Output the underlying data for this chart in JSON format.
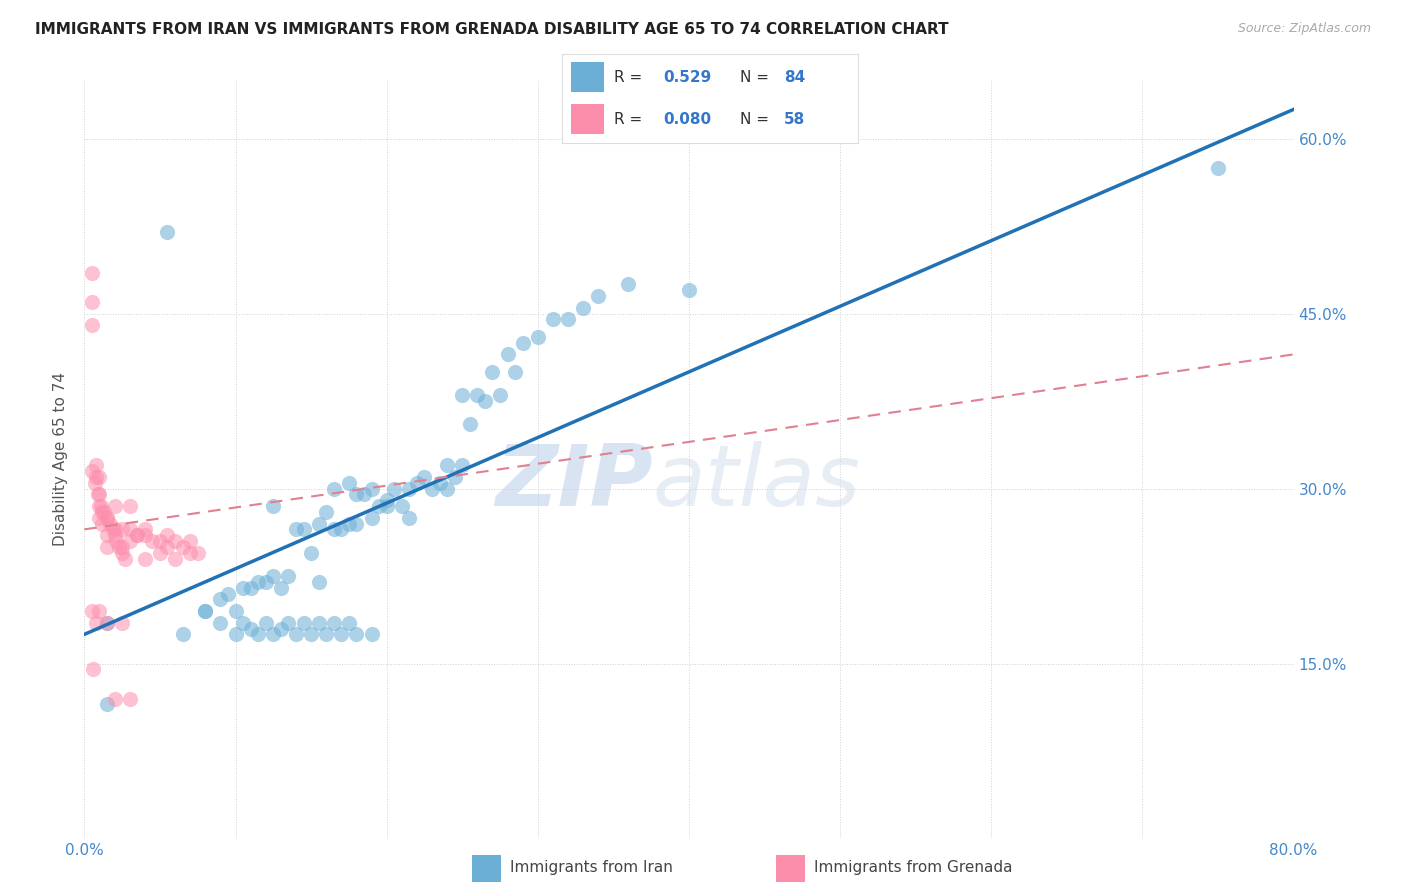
{
  "title": "IMMIGRANTS FROM IRAN VS IMMIGRANTS FROM GRENADA DISABILITY AGE 65 TO 74 CORRELATION CHART",
  "source": "Source: ZipAtlas.com",
  "ylabel": "Disability Age 65 to 74",
  "xlim": [
    0.0,
    0.8
  ],
  "ylim": [
    0.0,
    0.65
  ],
  "xticks": [
    0.0,
    0.1,
    0.2,
    0.3,
    0.4,
    0.5,
    0.6,
    0.7,
    0.8
  ],
  "xticklabels_show": [
    "0.0%",
    "80.0%"
  ],
  "yticks": [
    0.0,
    0.15,
    0.3,
    0.45,
    0.6
  ],
  "yticklabels": [
    "",
    "15.0%",
    "30.0%",
    "45.0%",
    "60.0%"
  ],
  "iran_color": "#6baed6",
  "grenada_color": "#fc8eac",
  "iran_line_color": "#2171b5",
  "grenada_line_color": "#e08090",
  "watermark_zip": "ZIP",
  "watermark_atlas": "atlas",
  "iran_R": 0.529,
  "iran_N": 84,
  "grenada_R": 0.08,
  "grenada_N": 58,
  "iran_line_x0": 0.0,
  "iran_line_y0": 0.175,
  "iran_line_x1": 0.8,
  "iran_line_y1": 0.625,
  "grenada_line_x0": 0.0,
  "grenada_line_y0": 0.265,
  "grenada_line_x1": 0.8,
  "grenada_line_y1": 0.415,
  "iran_scatter_x": [
    0.015,
    0.055,
    0.065,
    0.08,
    0.09,
    0.095,
    0.1,
    0.105,
    0.11,
    0.115,
    0.12,
    0.125,
    0.125,
    0.13,
    0.135,
    0.14,
    0.145,
    0.15,
    0.155,
    0.155,
    0.16,
    0.165,
    0.165,
    0.17,
    0.175,
    0.175,
    0.18,
    0.18,
    0.185,
    0.19,
    0.19,
    0.195,
    0.2,
    0.2,
    0.205,
    0.21,
    0.215,
    0.215,
    0.22,
    0.225,
    0.23,
    0.235,
    0.24,
    0.24,
    0.245,
    0.25,
    0.255,
    0.26,
    0.265,
    0.27,
    0.275,
    0.28,
    0.285,
    0.29,
    0.3,
    0.31,
    0.32,
    0.33,
    0.34,
    0.36,
    0.08,
    0.09,
    0.1,
    0.105,
    0.11,
    0.115,
    0.12,
    0.125,
    0.13,
    0.135,
    0.14,
    0.145,
    0.15,
    0.155,
    0.16,
    0.165,
    0.17,
    0.175,
    0.18,
    0.19,
    0.75,
    0.015,
    0.25,
    0.4
  ],
  "iran_scatter_y": [
    0.185,
    0.52,
    0.175,
    0.195,
    0.205,
    0.21,
    0.195,
    0.215,
    0.215,
    0.22,
    0.22,
    0.225,
    0.285,
    0.215,
    0.225,
    0.265,
    0.265,
    0.245,
    0.22,
    0.27,
    0.28,
    0.265,
    0.3,
    0.265,
    0.27,
    0.305,
    0.27,
    0.295,
    0.295,
    0.275,
    0.3,
    0.285,
    0.29,
    0.285,
    0.3,
    0.285,
    0.3,
    0.275,
    0.305,
    0.31,
    0.3,
    0.305,
    0.32,
    0.3,
    0.31,
    0.32,
    0.355,
    0.38,
    0.375,
    0.4,
    0.38,
    0.415,
    0.4,
    0.425,
    0.43,
    0.445,
    0.445,
    0.455,
    0.465,
    0.475,
    0.195,
    0.185,
    0.175,
    0.185,
    0.18,
    0.175,
    0.185,
    0.175,
    0.18,
    0.185,
    0.175,
    0.185,
    0.175,
    0.185,
    0.175,
    0.185,
    0.175,
    0.185,
    0.175,
    0.175,
    0.575,
    0.115,
    0.38,
    0.47
  ],
  "grenada_scatter_x": [
    0.005,
    0.005,
    0.005,
    0.008,
    0.008,
    0.01,
    0.01,
    0.01,
    0.01,
    0.012,
    0.012,
    0.015,
    0.015,
    0.015,
    0.02,
    0.02,
    0.02,
    0.025,
    0.025,
    0.03,
    0.03,
    0.03,
    0.035,
    0.035,
    0.04,
    0.04,
    0.04,
    0.045,
    0.05,
    0.05,
    0.055,
    0.055,
    0.06,
    0.06,
    0.065,
    0.07,
    0.07,
    0.075,
    0.005,
    0.007,
    0.009,
    0.011,
    0.013,
    0.015,
    0.017,
    0.019,
    0.021,
    0.023,
    0.025,
    0.027,
    0.005,
    0.006,
    0.008,
    0.01,
    0.015,
    0.02,
    0.025,
    0.03
  ],
  "grenada_scatter_y": [
    0.485,
    0.46,
    0.44,
    0.32,
    0.31,
    0.31,
    0.295,
    0.285,
    0.275,
    0.28,
    0.27,
    0.275,
    0.26,
    0.25,
    0.265,
    0.26,
    0.285,
    0.265,
    0.25,
    0.265,
    0.255,
    0.285,
    0.26,
    0.26,
    0.26,
    0.24,
    0.265,
    0.255,
    0.255,
    0.245,
    0.25,
    0.26,
    0.255,
    0.24,
    0.25,
    0.245,
    0.255,
    0.245,
    0.315,
    0.305,
    0.295,
    0.285,
    0.28,
    0.275,
    0.27,
    0.265,
    0.255,
    0.25,
    0.245,
    0.24,
    0.195,
    0.145,
    0.185,
    0.195,
    0.185,
    0.12,
    0.185,
    0.12
  ]
}
